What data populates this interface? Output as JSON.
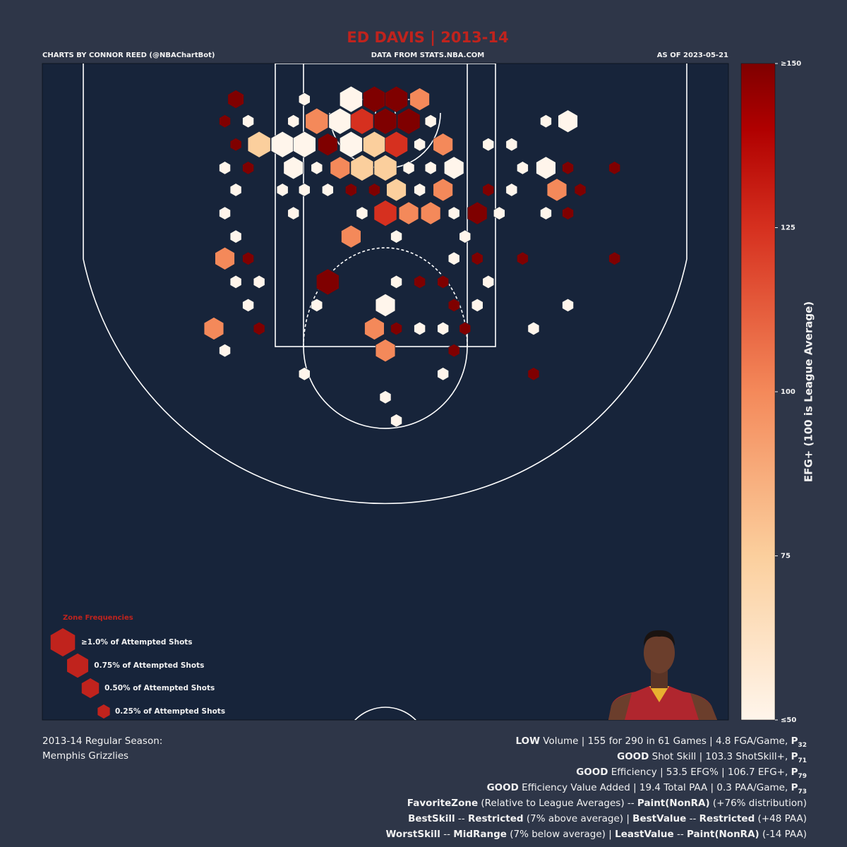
{
  "chart_data": {
    "type": "hexbin",
    "title": "ED DAVIS | 2013-14",
    "credit_left": "CHARTS BY CONNOR REED (@NBAChartBot)",
    "credit_center": "DATA FROM STATS.NBA.COM",
    "credit_right": "AS OF 2023-05-21",
    "xlim": [
      -25,
      25
    ],
    "ylim": [
      -3.6,
      44.2
    ],
    "x": [
      -10.9,
      -5.9,
      -2.5,
      -0.8,
      0.8,
      2.5,
      -11.7,
      -10.0,
      -6.7,
      -5.0,
      -3.3,
      -1.7,
      0,
      1.7,
      3.3,
      11.7,
      13.3,
      -10.9,
      -9.2,
      -7.5,
      -5.9,
      -4.2,
      -2.5,
      -0.8,
      0.8,
      2.5,
      4.2,
      7.5,
      9.2,
      -11.7,
      -10.0,
      -6.7,
      -5.0,
      -3.3,
      -1.7,
      0,
      1.7,
      3.3,
      5.0,
      10.0,
      11.7,
      13.3,
      16.7,
      -10.9,
      -7.5,
      -5.9,
      -4.2,
      -2.5,
      -0.8,
      0.8,
      2.5,
      4.2,
      7.5,
      9.2,
      12.5,
      14.2,
      -11.7,
      -6.7,
      -1.7,
      0,
      1.7,
      3.3,
      5.0,
      6.7,
      8.3,
      11.7,
      13.3,
      -10.9,
      -2.5,
      0.8,
      5.8,
      -11.7,
      -10.0,
      5.0,
      6.7,
      10.0,
      16.7,
      -10.9,
      -9.2,
      -4.2,
      0.8,
      2.5,
      4.2,
      7.5,
      -10.0,
      -5.0,
      0,
      5.0,
      6.7,
      13.3,
      -12.5,
      -9.2,
      -0.8,
      0.8,
      2.5,
      4.2,
      5.8,
      10.8,
      -11.7,
      0,
      5.0,
      -5.9,
      4.2,
      10.8,
      0,
      0.8
    ],
    "y": [
      -1.0,
      -1.0,
      -1.0,
      -1.0,
      -1.0,
      -1.0,
      0.6,
      0.6,
      0.6,
      0.6,
      0.6,
      0.6,
      0.6,
      0.6,
      0.6,
      0.6,
      0.6,
      2.3,
      2.3,
      2.3,
      2.3,
      2.3,
      2.3,
      2.3,
      2.3,
      2.3,
      2.3,
      2.3,
      2.3,
      4.0,
      4.0,
      4.0,
      4.0,
      4.0,
      4.0,
      4.0,
      4.0,
      4.0,
      4.0,
      4.0,
      4.0,
      4.0,
      4.0,
      5.6,
      5.6,
      5.6,
      5.6,
      5.6,
      5.6,
      5.6,
      5.6,
      5.6,
      5.6,
      5.6,
      5.6,
      5.6,
      7.3,
      7.3,
      7.3,
      7.3,
      7.3,
      7.3,
      7.3,
      7.3,
      7.3,
      7.3,
      7.3,
      9.0,
      9.0,
      9.0,
      9.0,
      10.6,
      10.6,
      10.6,
      10.6,
      10.6,
      10.6,
      12.3,
      12.3,
      12.3,
      12.3,
      12.3,
      12.3,
      12.3,
      14.0,
      14.0,
      14.0,
      14.0,
      14.0,
      14.0,
      15.7,
      15.7,
      15.7,
      15.7,
      15.7,
      15.7,
      15.7,
      15.7,
      17.3,
      17.3,
      17.3,
      19.0,
      19.0,
      19.0,
      20.7,
      22.4
    ],
    "sizes": [
      0.5,
      0.25,
      1.0,
      1.0,
      1.0,
      0.75,
      0.25,
      0.25,
      0.25,
      1.0,
      1.0,
      1.0,
      1.0,
      1.0,
      0.25,
      0.25,
      0.75,
      0.25,
      1.0,
      1.0,
      1.0,
      0.75,
      1.0,
      1.0,
      1.0,
      0.25,
      0.75,
      0.25,
      0.25,
      0.25,
      0.25,
      0.75,
      0.25,
      0.75,
      1.0,
      1.0,
      0.25,
      0.25,
      0.75,
      0.25,
      0.75,
      0.25,
      0.25,
      0.25,
      0.25,
      0.25,
      0.25,
      0.25,
      0.25,
      0.75,
      0.25,
      0.75,
      0.25,
      0.25,
      0.75,
      0.25,
      0.25,
      0.25,
      0.25,
      1.0,
      0.75,
      0.75,
      0.25,
      0.75,
      0.25,
      0.25,
      0.25,
      0.25,
      0.75,
      0.25,
      0.25,
      0.75,
      0.25,
      0.25,
      0.25,
      0.25,
      0.25,
      0.25,
      0.25,
      1.0,
      0.25,
      0.25,
      0.25,
      0.25,
      0.25,
      0.25,
      0.75,
      0.25,
      0.25,
      0.25,
      0.75,
      0.25,
      0.75,
      0.25,
      0.25,
      0.25,
      0.25,
      0.25,
      0.25,
      0.75,
      0.25,
      0.25,
      0.25,
      0.25,
      0.25,
      0.25
    ],
    "values": [
      150,
      50,
      50,
      150,
      150,
      100,
      150,
      50,
      50,
      100,
      50,
      125,
      150,
      150,
      50,
      50,
      50,
      150,
      75,
      50,
      50,
      150,
      50,
      75,
      125,
      50,
      100,
      50,
      50,
      50,
      150,
      50,
      50,
      100,
      75,
      75,
      50,
      50,
      50,
      50,
      50,
      150,
      150,
      50,
      50,
      50,
      50,
      150,
      150,
      75,
      50,
      100,
      150,
      50,
      100,
      150,
      50,
      50,
      50,
      125,
      100,
      100,
      50,
      150,
      50,
      50,
      150,
      50,
      100,
      50,
      50,
      100,
      150,
      50,
      150,
      150,
      150,
      50,
      50,
      150,
      50,
      150,
      150,
      50,
      50,
      50,
      50,
      150,
      50,
      50,
      100,
      150,
      100,
      150,
      50,
      50,
      150,
      50,
      50,
      100,
      150,
      50,
      50,
      150,
      50,
      50
    ],
    "colorscale": [
      [
        50,
        "#fff5eb"
      ],
      [
        75,
        "#fbcf9d"
      ],
      [
        100,
        "#f4895a"
      ],
      [
        125,
        "#d6301f"
      ],
      [
        140,
        "#b00000"
      ],
      [
        150,
        "#7f0000"
      ]
    ],
    "colorbar": {
      "label": "EFG+ (100 is League Average)",
      "ylim": [
        50,
        150
      ],
      "yticks": [
        {
          "value": 50,
          "label": "≤50"
        },
        75,
        100,
        125,
        {
          "value": 150,
          "label": "≥150"
        }
      ]
    },
    "legend": {
      "title": "Zone Frequencies",
      "color": "#c0231d",
      "items": [
        {
          "size": 1.0,
          "label": "≥1.0% of Attempted Shots"
        },
        {
          "size": 0.75,
          "label": "0.75% of Attempted Shots"
        },
        {
          "size": 0.5,
          "label": "0.50% of Attempted Shots"
        },
        {
          "size": 0.25,
          "label": "0.25% of Attempted Shots"
        }
      ]
    }
  },
  "season": [
    "2013-14 Regular Season:",
    "Memphis Grizzlies"
  ],
  "stats": [
    [
      {
        "t": "LOW",
        "s": "b"
      },
      {
        "t": " Volume | 155 for 290 in 61 Games | 4.8 FGA/Game, ",
        "s": "n"
      },
      {
        "t": "P",
        "s": "b"
      },
      {
        "t": "32",
        "s": "sub"
      }
    ],
    [
      {
        "t": "GOOD",
        "s": "b"
      },
      {
        "t": " Shot Skill | 103.3 ShotSkill+, ",
        "s": "n"
      },
      {
        "t": "P",
        "s": "b"
      },
      {
        "t": "71",
        "s": "sub"
      }
    ],
    [
      {
        "t": "GOOD",
        "s": "b"
      },
      {
        "t": " Efficiency | 53.5 EFG% | 106.7 EFG+, ",
        "s": "n"
      },
      {
        "t": "P",
        "s": "b"
      },
      {
        "t": "79",
        "s": "sub"
      }
    ],
    [
      {
        "t": "GOOD",
        "s": "b"
      },
      {
        "t": " Efficiency Value Added | 19.4 Total PAA | 0.3 PAA/Game, ",
        "s": "n"
      },
      {
        "t": "P",
        "s": "b"
      },
      {
        "t": "73",
        "s": "sub"
      }
    ],
    [
      {
        "t": "FavoriteZone",
        "s": "b"
      },
      {
        "t": " (Relative to League Averages) -- ",
        "s": "n"
      },
      {
        "t": "Paint(NonRA)",
        "s": "b"
      },
      {
        "t": " (+76% distribution)",
        "s": "n"
      }
    ],
    [
      {
        "t": "BestSkill",
        "s": "b"
      },
      {
        "t": " -- ",
        "s": "n"
      },
      {
        "t": "Restricted",
        "s": "b"
      },
      {
        "t": " (7% above average) | ",
        "s": "n"
      },
      {
        "t": "BestValue",
        "s": "b"
      },
      {
        "t": " -- ",
        "s": "n"
      },
      {
        "t": "Restricted",
        "s": "b"
      },
      {
        "t": " (+48 PAA)",
        "s": "n"
      }
    ],
    [
      {
        "t": "WorstSkill",
        "s": "b"
      },
      {
        "t": " -- ",
        "s": "n"
      },
      {
        "t": "MidRange",
        "s": "b"
      },
      {
        "t": " (7% below average) | ",
        "s": "n"
      },
      {
        "t": "LeastValue",
        "s": "b"
      },
      {
        "t": " -- ",
        "s": "n"
      },
      {
        "t": "Paint(NonRA)",
        "s": "b"
      },
      {
        "t": " (-14 PAA)",
        "s": "n"
      }
    ]
  ]
}
